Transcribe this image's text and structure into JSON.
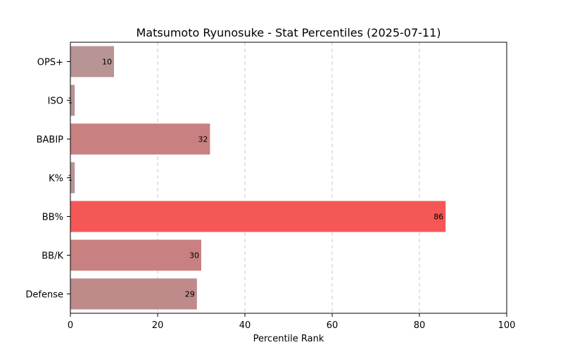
{
  "chart_data": {
    "type": "bar",
    "orientation": "horizontal",
    "title": "Matsumoto Ryunosuke - Stat Percentiles (2025-07-11)",
    "xlabel": "Percentile Rank",
    "ylabel": "",
    "xlim": [
      0,
      100
    ],
    "xticks": [
      0,
      20,
      40,
      60,
      80,
      100
    ],
    "grid": "x-dashed",
    "categories": [
      "OPS+",
      "ISO",
      "BABIP",
      "K%",
      "BB%",
      "BB/K",
      "Defense"
    ],
    "values": [
      10,
      1,
      32,
      1,
      86,
      30,
      29
    ],
    "labels": [
      "10",
      "1",
      "32",
      "1",
      "86",
      "30",
      "29"
    ],
    "colors": [
      "#b89494",
      "#b89494",
      "#c98080",
      "#b89494",
      "#f55656",
      "#c98080",
      "#bf8a8a"
    ]
  }
}
